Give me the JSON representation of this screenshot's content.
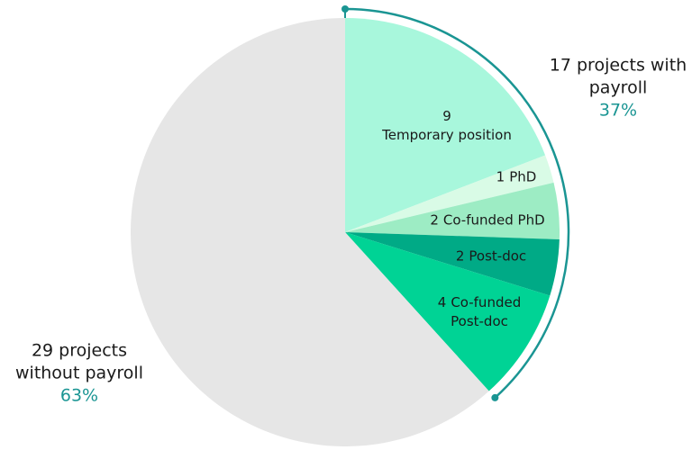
{
  "chart_data": {
    "type": "pie",
    "categories": [
      "Temporary position",
      "PhD",
      "Co-funded PhD",
      "Post-doc",
      "Co-funded Post-doc",
      null
    ],
    "values": [
      9,
      1,
      2,
      2,
      4,
      29
    ],
    "colors": [
      "#a8f7dc",
      "#d9fbe6",
      "#9decc4",
      "#00aa86",
      "#00d395",
      "#e6e6e6"
    ],
    "annotations": [
      {
        "text": "17 projects with payroll",
        "value": 37,
        "value_label": "37%"
      },
      {
        "text": "29 projects without payroll",
        "value": 63,
        "value_label": "63%"
      }
    ]
  }
}
